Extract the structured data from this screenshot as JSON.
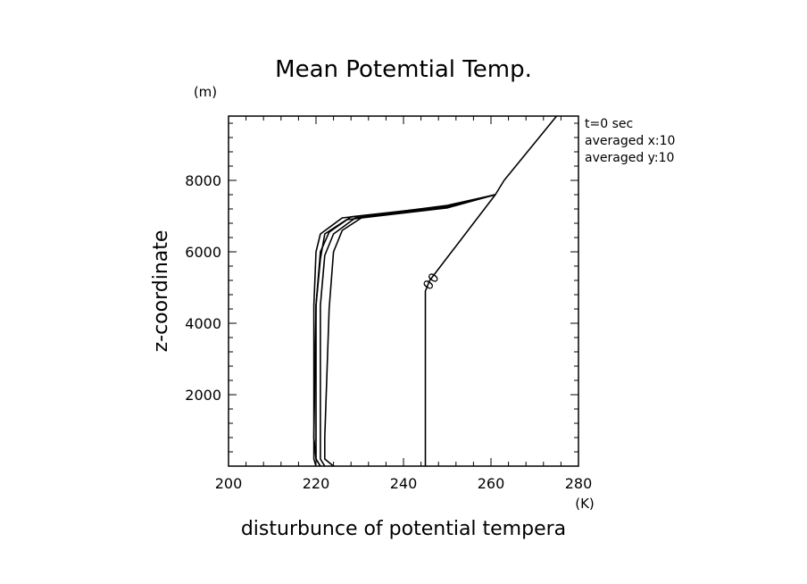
{
  "chart_data": {
    "type": "line",
    "title": "Mean Potemtial Temp.",
    "xlabel": "disturbunce of potential tempera",
    "ylabel": "z-coordinate",
    "x_unit": "(K)",
    "y_unit": "(m)",
    "xlim": [
      200,
      280
    ],
    "ylim": [
      0,
      9800
    ],
    "x_ticks": [
      "200",
      "220",
      "240",
      "260",
      "280"
    ],
    "y_ticks": [
      "2000",
      "4000",
      "6000",
      "8000"
    ],
    "grid": false,
    "annotations": [
      "t=0 sec",
      "averaged  x:10",
      "averaged  y:10"
    ],
    "contour_label": "00",
    "series": [
      {
        "values": [
          [
            224,
            0
          ],
          [
            222,
            200
          ],
          [
            222,
            800
          ],
          [
            223,
            4400
          ],
          [
            224,
            6000
          ],
          [
            226,
            6600
          ],
          [
            231,
            7000
          ],
          [
            250,
            7300
          ],
          [
            261,
            7600
          ]
        ]
      },
      {
        "values": [
          [
            222,
            0
          ],
          [
            221,
            200
          ],
          [
            221,
            800
          ],
          [
            221,
            4500
          ],
          [
            222,
            5900
          ],
          [
            224,
            6500
          ],
          [
            229,
            6950
          ],
          [
            250,
            7250
          ],
          [
            261,
            7600
          ]
        ]
      },
      {
        "values": [
          [
            221,
            0
          ],
          [
            220,
            200
          ],
          [
            220,
            800
          ],
          [
            220,
            4500
          ],
          [
            221,
            6000
          ],
          [
            223,
            6550
          ],
          [
            228,
            6980
          ],
          [
            250,
            7280
          ],
          [
            261,
            7600
          ]
        ]
      },
      {
        "values": [
          [
            221,
            0
          ],
          [
            220,
            200
          ],
          [
            219.5,
            800
          ],
          [
            220,
            4500
          ],
          [
            221,
            5800
          ],
          [
            222,
            6500
          ],
          [
            227,
            6900
          ],
          [
            250,
            7230
          ],
          [
            261,
            7600
          ]
        ]
      },
      {
        "values": [
          [
            220,
            0
          ],
          [
            219.5,
            200
          ],
          [
            219.5,
            800
          ],
          [
            219.5,
            4500
          ],
          [
            220,
            6000
          ],
          [
            221,
            6500
          ],
          [
            226,
            6950
          ],
          [
            250,
            7260
          ],
          [
            261,
            7600
          ]
        ]
      },
      {
        "values": [
          [
            245,
            0
          ],
          [
            245,
            4900
          ],
          [
            246,
            5200
          ],
          [
            261,
            7600
          ],
          [
            263,
            8000
          ],
          [
            267,
            8600
          ],
          [
            275,
            9800
          ]
        ]
      }
    ]
  }
}
